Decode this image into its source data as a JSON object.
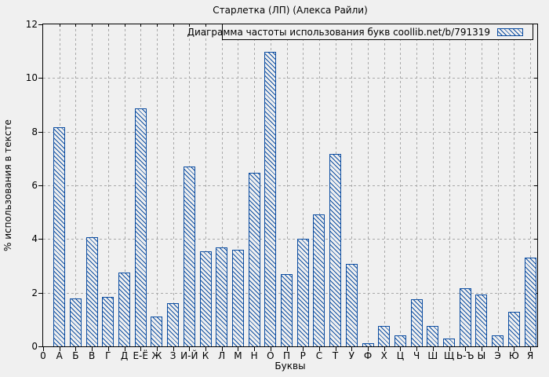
{
  "title": "Старлетка (ЛП) (Алекса Райли)",
  "chart_data": {
    "type": "bar",
    "title": "Старлетка (ЛП) (Алекса Райли)",
    "legend": "Диаграмма частоты использования букв coollib.net/b/791319",
    "legend_position": "top-right",
    "xlabel": "Буквы",
    "ylabel": "% использования в тексте",
    "x_origin_label": "0",
    "categories": [
      "А",
      "Б",
      "В",
      "Г",
      "Д",
      "Е-Ё",
      "Ж",
      "З",
      "И-Й",
      "К",
      "Л",
      "М",
      "Н",
      "О",
      "П",
      "Р",
      "С",
      "Т",
      "У",
      "Ф",
      "Х",
      "Ц",
      "Ч",
      "Ш",
      "Щ",
      "Ь-Ъ",
      "Ы",
      "Э",
      "Ю",
      "Я"
    ],
    "values": [
      8.16,
      1.8,
      4.06,
      1.85,
      2.76,
      8.86,
      1.1,
      1.61,
      6.71,
      3.54,
      3.7,
      3.6,
      6.47,
      10.97,
      2.7,
      4.0,
      4.91,
      7.17,
      3.07,
      0.13,
      0.76,
      0.4,
      1.77,
      0.76,
      0.29,
      2.17,
      1.92,
      0.4,
      1.3,
      3.3
    ],
    "ylim": [
      0,
      12
    ],
    "yticks": [
      0,
      2,
      4,
      6,
      8,
      10,
      12
    ],
    "grid": true,
    "bar_fill": "diagonal-hatch",
    "colors": {
      "bar": "#0c4da1",
      "grid": "#a9a9a9",
      "background": "#f0f0f0",
      "axis": "#000000",
      "text": "#000000"
    }
  }
}
